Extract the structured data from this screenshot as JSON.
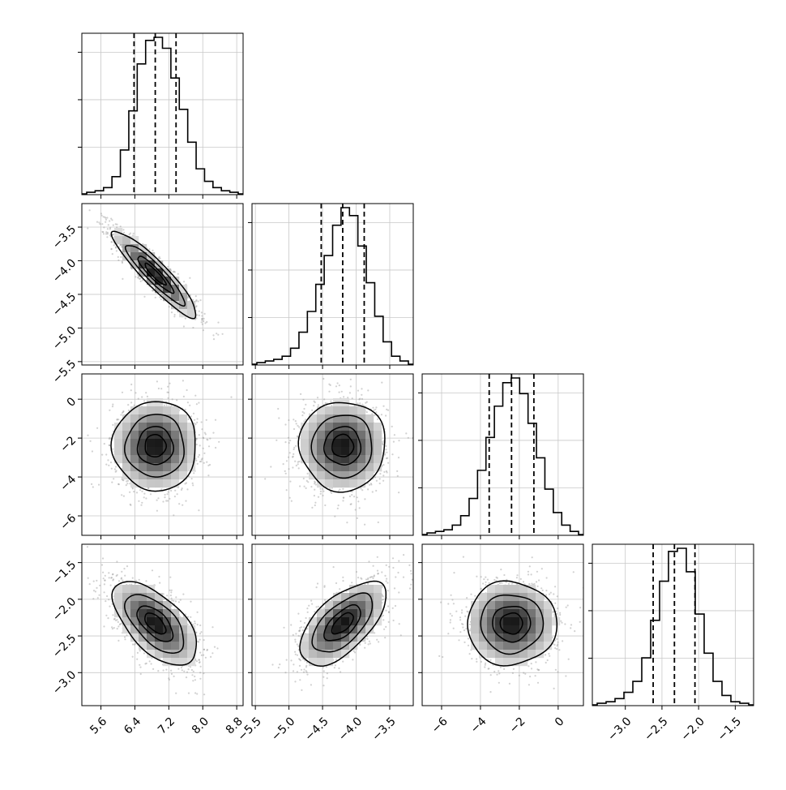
{
  "chart_data": {
    "type": "corner",
    "grid": true,
    "parameters": [
      {
        "range": [
          5.15,
          8.95
        ],
        "ticks": [
          5.6,
          6.4,
          7.2,
          8.0,
          8.8
        ],
        "tick_labels": [
          "5.6",
          "6.4",
          "7.2",
          "8.0",
          "8.8"
        ],
        "median": 6.88,
        "q16": 6.38,
        "q84": 7.37,
        "hist_y_ticks": [
          1,
          2,
          3
        ],
        "histogram": [
          0.01,
          0.02,
          0.04,
          0.11,
          0.28,
          0.53,
          0.83,
          0.98,
          1.0,
          0.93,
          0.74,
          0.54,
          0.33,
          0.16,
          0.08,
          0.04,
          0.02,
          0.01
        ]
      },
      {
        "range": [
          -5.55,
          -3.15
        ],
        "ticks": [
          -5.5,
          -5.0,
          -4.5,
          -4.0,
          -3.5
        ],
        "tick_labels": [
          "−5.5",
          "−5.0",
          "−4.5",
          "−4.0",
          "−3.5"
        ],
        "median": -4.2,
        "q16": -4.52,
        "q84": -3.88,
        "hist_y_ticks": [
          1,
          2,
          3
        ],
        "histogram": [
          0.01,
          0.02,
          0.03,
          0.05,
          0.1,
          0.2,
          0.33,
          0.5,
          0.68,
          0.87,
          0.98,
          0.93,
          0.74,
          0.51,
          0.3,
          0.14,
          0.05,
          0.02
        ]
      },
      {
        "range": [
          -7.0,
          1.3
        ],
        "ticks": [
          -6,
          -4,
          -2,
          0
        ],
        "tick_labels": [
          "−6",
          "−4",
          "−2",
          "0"
        ],
        "median": -2.4,
        "q16": -3.55,
        "q84": -1.25,
        "hist_y_ticks": [
          1,
          2,
          3
        ],
        "histogram": [
          0.01,
          0.02,
          0.03,
          0.06,
          0.12,
          0.23,
          0.41,
          0.62,
          0.82,
          0.97,
          1.0,
          0.9,
          0.71,
          0.49,
          0.29,
          0.14,
          0.06,
          0.02
        ]
      },
      {
        "range": [
          -3.45,
          -1.25
        ],
        "ticks": [
          -3.0,
          -2.5,
          -2.0,
          -1.5
        ],
        "tick_labels": [
          "−3.0",
          "−2.5",
          "−2.0",
          "−1.5"
        ],
        "median": -2.33,
        "q16": -2.62,
        "q84": -2.05,
        "hist_y_ticks": [
          1,
          2,
          3
        ],
        "histogram": [
          0.01,
          0.02,
          0.04,
          0.08,
          0.15,
          0.3,
          0.54,
          0.79,
          0.98,
          1.0,
          0.85,
          0.58,
          0.33,
          0.15,
          0.06,
          0.02,
          0.01
        ]
      }
    ],
    "correlations": [
      [
        null,
        null,
        null,
        null
      ],
      [
        -0.92,
        null,
        null,
        null
      ],
      [
        0.0,
        0.0,
        null,
        null
      ],
      [
        -0.6,
        0.62,
        0.0,
        null
      ]
    ],
    "contour_levels": [
      0.5,
      0.85,
      1.4,
      2.0
    ]
  }
}
